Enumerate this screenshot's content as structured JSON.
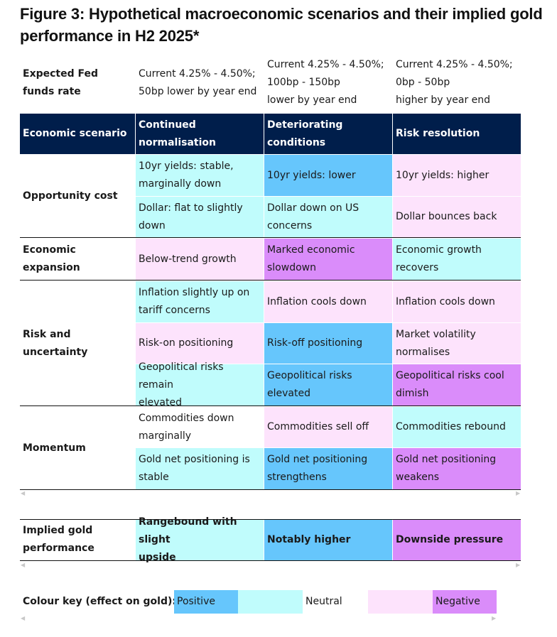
{
  "title": "Figure 3: Hypothetical macroeconomic scenarios and their implied gold performance in H2 2025*",
  "fed_row": {
    "label": "Expected Fed funds rate",
    "label_line1": "Expected Fed",
    "label_line2": "funds rate",
    "values": [
      [
        "Current 4.25% - 4.50%;",
        "50bp lower by year end"
      ],
      [
        "Current 4.25% - 4.50%;",
        "100bp - 150bp",
        "lower by year end"
      ],
      [
        "Current 4.25% - 4.50%;",
        "0bp - 50bp",
        "higher by year end"
      ]
    ]
  },
  "header": {
    "first": "Economic scenario",
    "scenarios": [
      [
        "Continued",
        "normalisation"
      ],
      [
        "Deteriorating",
        "conditions"
      ],
      [
        "Risk resolution"
      ]
    ]
  },
  "colors": {
    "header_bg": "#001e4b",
    "positive": "#66c6fc",
    "positive_light": "#c0fcfc",
    "negative_light": "#fde3fc",
    "negative": "#da8cfa"
  },
  "groups": [
    {
      "label": "Opportunity cost",
      "rows": [
        [
          {
            "lines": [
              "10yr yields: stable,",
              "marginally down"
            ],
            "effect": "positive_light"
          },
          {
            "lines": [
              "10yr yields: lower"
            ],
            "effect": "positive"
          },
          {
            "lines": [
              "10yr yields: higher"
            ],
            "effect": "negative_light"
          }
        ],
        [
          {
            "lines": [
              "Dollar: flat to slightly",
              "down"
            ],
            "effect": "positive_light"
          },
          {
            "lines": [
              "Dollar down on US",
              "concerns"
            ],
            "effect": "positive_light"
          },
          {
            "lines": [
              "Dollar bounces back"
            ],
            "effect": "negative_light"
          }
        ]
      ]
    },
    {
      "label": "Economic expansion",
      "rows": [
        [
          {
            "lines": [
              "Below-trend growth"
            ],
            "effect": "negative_light"
          },
          {
            "lines": [
              "Marked economic",
              "slowdown"
            ],
            "effect": "negative"
          },
          {
            "lines": [
              "Economic growth",
              "recovers"
            ],
            "effect": "positive_light"
          }
        ]
      ]
    },
    {
      "label": "Risk and uncertainty",
      "rows": [
        [
          {
            "lines": [
              "Inflation slightly up on",
              "tariff concerns"
            ],
            "effect": "positive_light"
          },
          {
            "lines": [
              "Inflation cools down"
            ],
            "effect": "negative_light"
          },
          {
            "lines": [
              "Inflation cools down"
            ],
            "effect": "negative_light"
          }
        ],
        [
          {
            "lines": [
              "Risk-on positioning"
            ],
            "effect": "negative_light"
          },
          {
            "lines": [
              "Risk-off positioning"
            ],
            "effect": "positive"
          },
          {
            "lines": [
              "Market volatility",
              "normalises"
            ],
            "effect": "negative_light"
          }
        ],
        [
          {
            "lines": [
              "Geopolitical risks remain",
              "elevated"
            ],
            "effect": "positive_light"
          },
          {
            "lines": [
              "Geopolitical risks",
              "elevated"
            ],
            "effect": "positive"
          },
          {
            "lines": [
              "Geopolitical risks cool",
              "dimish"
            ],
            "effect": "negative"
          }
        ]
      ]
    },
    {
      "label": "Momentum",
      "rows": [
        [
          {
            "lines": [
              "Commodities down",
              "marginally"
            ],
            "effect": "neutral"
          },
          {
            "lines": [
              "Commodities sell off"
            ],
            "effect": "negative_light"
          },
          {
            "lines": [
              "Commodities rebound"
            ],
            "effect": "positive_light"
          }
        ],
        [
          {
            "lines": [
              "Gold net positioning is",
              "stable"
            ],
            "effect": "positive_light"
          },
          {
            "lines": [
              "Gold net positioning",
              "strengthens"
            ],
            "effect": "positive"
          },
          {
            "lines": [
              "Gold net positioning",
              "weakens"
            ],
            "effect": "negative"
          }
        ]
      ]
    }
  ],
  "implied": {
    "label_line1": "Implied gold",
    "label_line2": "performance",
    "values": [
      {
        "lines": [
          "Rangebound with slight",
          "upside"
        ],
        "effect": "positive_light"
      },
      {
        "lines": [
          "Notably higher"
        ],
        "effect": "positive"
      },
      {
        "lines": [
          "Downside pressure"
        ],
        "effect": "negative"
      }
    ]
  },
  "key": {
    "label": "Colour key (effect on gold):",
    "positive": "Positive",
    "neutral": "Neutral",
    "negative": "Negative"
  },
  "scroll_icons": {
    "left": "◀",
    "right": "▶"
  }
}
